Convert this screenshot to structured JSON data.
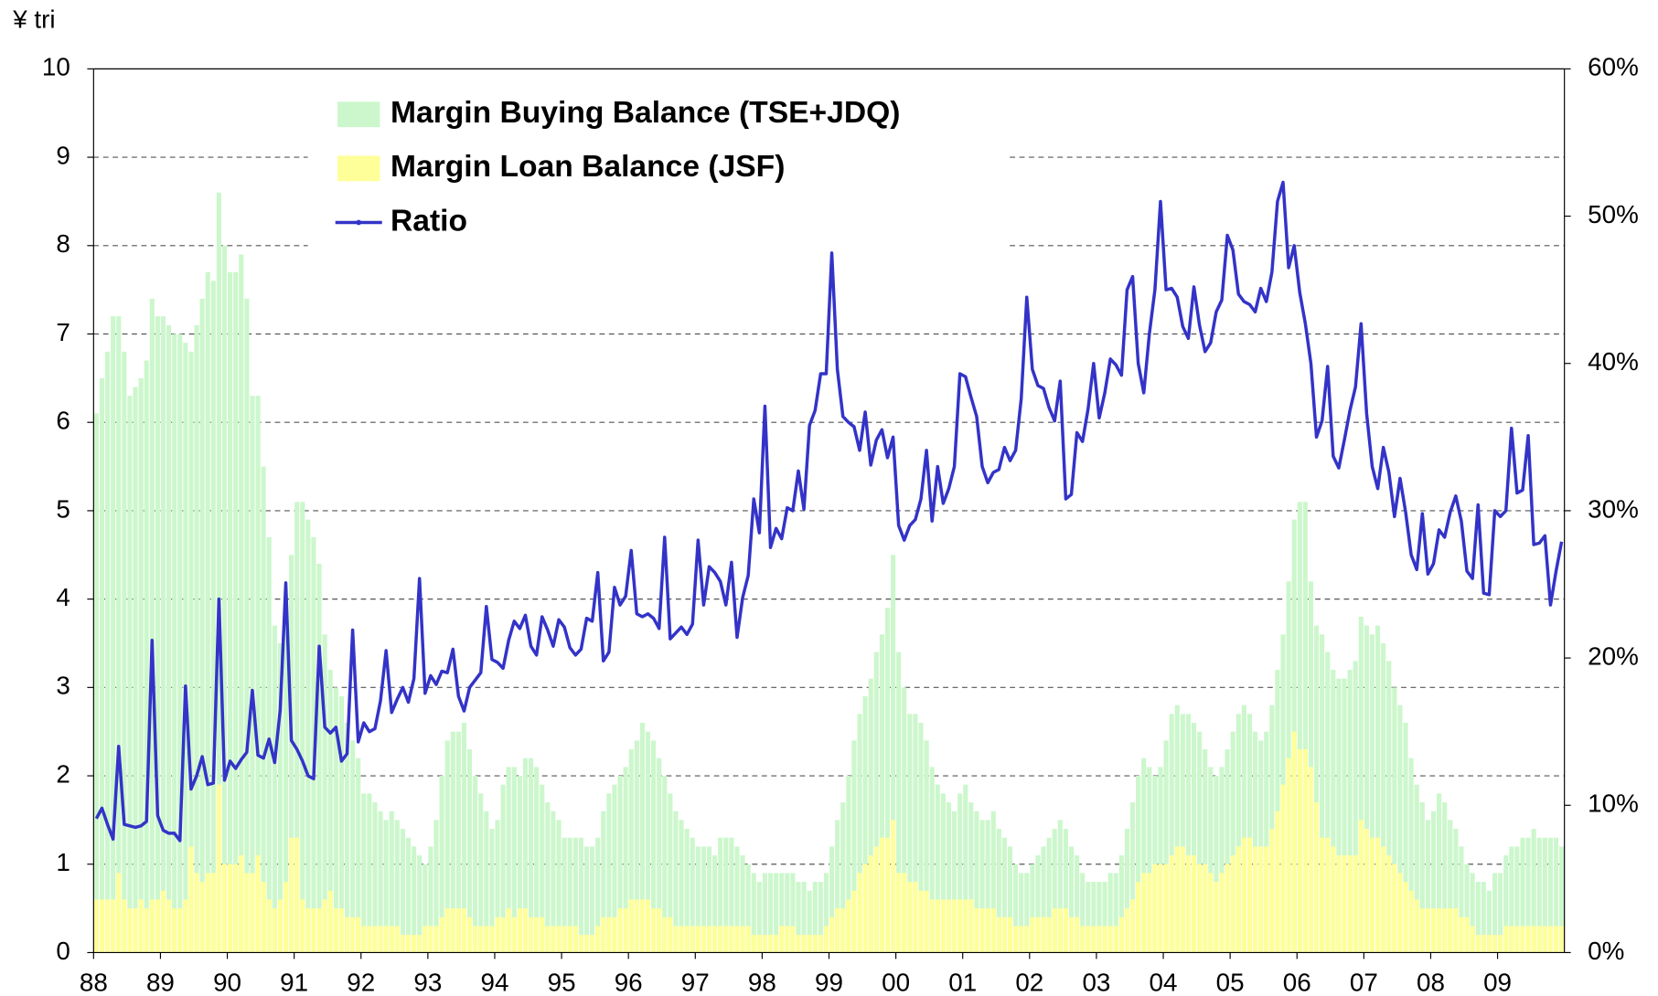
{
  "chart_data": {
    "type": "bar-line",
    "y_label": "¥ tri",
    "categories": [
      "88",
      null,
      null,
      null,
      null,
      null,
      null,
      null,
      null,
      null,
      null,
      null,
      "89",
      null,
      null,
      null,
      null,
      null,
      null,
      null,
      null,
      null,
      null,
      null,
      "90",
      null,
      null,
      null,
      null,
      null,
      null,
      null,
      null,
      null,
      null,
      null,
      "91",
      null,
      null,
      null,
      null,
      null,
      null,
      null,
      null,
      null,
      null,
      null,
      "92",
      null,
      null,
      null,
      null,
      null,
      null,
      null,
      null,
      null,
      null,
      null,
      "93",
      null,
      null,
      null,
      null,
      null,
      null,
      null,
      null,
      null,
      null,
      null,
      "94",
      null,
      null,
      null,
      null,
      null,
      null,
      null,
      null,
      null,
      null,
      null,
      "95",
      null,
      null,
      null,
      null,
      null,
      null,
      null,
      null,
      null,
      null,
      null,
      "96",
      null,
      null,
      null,
      null,
      null,
      null,
      null,
      null,
      null,
      null,
      null,
      "97",
      null,
      null,
      null,
      null,
      null,
      null,
      null,
      null,
      null,
      null,
      null,
      "98",
      null,
      null,
      null,
      null,
      null,
      null,
      null,
      null,
      null,
      null,
      null,
      "99",
      null,
      null,
      null,
      null,
      null,
      null,
      null,
      null,
      null,
      null,
      null,
      "00",
      null,
      null,
      null,
      null,
      null,
      null,
      null,
      null,
      null,
      null,
      null,
      "01",
      null,
      null,
      null,
      null,
      null,
      null,
      null,
      null,
      null,
      null,
      null,
      "02",
      null,
      null,
      null,
      null,
      null,
      null,
      null,
      null,
      null,
      null,
      null,
      "03",
      null,
      null,
      null,
      null,
      null,
      null,
      null,
      null,
      null,
      null,
      null,
      "04",
      null,
      null,
      null,
      null,
      null,
      null,
      null,
      null,
      null,
      null,
      null,
      "05",
      null,
      null,
      null,
      null,
      null,
      null,
      null,
      null,
      null,
      null,
      null,
      "06",
      null,
      null,
      null,
      null,
      null,
      null,
      null,
      null,
      null,
      null,
      null,
      "07",
      null,
      null,
      null,
      null,
      null,
      null,
      null,
      null,
      null,
      null,
      null,
      "08",
      null,
      null,
      null,
      null,
      null,
      null,
      null,
      null,
      null,
      null,
      null,
      "09",
      null,
      null,
      null,
      null,
      null,
      null,
      null,
      null,
      null,
      null,
      null
    ],
    "series": [
      {
        "name": "Margin Buying Balance (TSE+JDQ)",
        "color": "#ccf7cc",
        "kind": "bar",
        "values": [
          6.1,
          6.5,
          6.8,
          7.2,
          7.2,
          6.8,
          6.3,
          6.4,
          6.5,
          6.7,
          7.4,
          7.2,
          7.2,
          7.1,
          7.0,
          7.0,
          6.9,
          6.8,
          7.1,
          7.4,
          7.7,
          7.6,
          8.6,
          8.0,
          7.7,
          7.7,
          7.9,
          7.4,
          6.3,
          6.3,
          5.5,
          4.7,
          3.7,
          3.5,
          3.8,
          4.5,
          5.1,
          5.1,
          4.9,
          4.7,
          4.4,
          3.6,
          3.2,
          3.0,
          2.9,
          2.6,
          2.4,
          2.2,
          1.8,
          1.8,
          1.7,
          1.6,
          1.5,
          1.6,
          1.5,
          1.4,
          1.3,
          1.2,
          1.1,
          1.0,
          1.2,
          1.5,
          2.0,
          2.4,
          2.5,
          2.5,
          2.6,
          2.3,
          2.0,
          1.8,
          1.6,
          1.4,
          1.5,
          1.9,
          2.1,
          2.1,
          2.0,
          2.2,
          2.2,
          2.1,
          1.9,
          1.7,
          1.6,
          1.5,
          1.3,
          1.3,
          1.3,
          1.3,
          1.2,
          1.2,
          1.3,
          1.6,
          1.8,
          1.9,
          2.0,
          2.1,
          2.3,
          2.4,
          2.6,
          2.5,
          2.4,
          2.2,
          2.0,
          1.8,
          1.6,
          1.5,
          1.4,
          1.3,
          1.2,
          1.2,
          1.2,
          1.1,
          1.3,
          1.3,
          1.3,
          1.2,
          1.1,
          1.0,
          0.9,
          0.8,
          0.9,
          0.9,
          0.9,
          0.9,
          0.9,
          0.9,
          0.8,
          0.8,
          0.7,
          0.8,
          0.8,
          0.9,
          1.2,
          1.5,
          1.7,
          2.0,
          2.4,
          2.7,
          2.9,
          3.1,
          3.4,
          3.6,
          3.9,
          4.5,
          3.4,
          3.0,
          2.7,
          2.7,
          2.6,
          2.4,
          2.1,
          1.9,
          1.8,
          1.7,
          1.6,
          1.8,
          1.9,
          1.7,
          1.6,
          1.5,
          1.5,
          1.6,
          1.4,
          1.3,
          1.2,
          1.0,
          0.9,
          0.9,
          1.0,
          1.1,
          1.2,
          1.3,
          1.4,
          1.5,
          1.4,
          1.2,
          1.1,
          0.9,
          0.8,
          0.8,
          0.8,
          0.8,
          0.9,
          0.9,
          1.1,
          1.4,
          1.7,
          2.0,
          2.2,
          2.1,
          2.0,
          2.1,
          2.4,
          2.7,
          2.8,
          2.7,
          2.7,
          2.6,
          2.5,
          2.3,
          2.1,
          2.0,
          2.1,
          2.3,
          2.5,
          2.7,
          2.8,
          2.7,
          2.5,
          2.4,
          2.5,
          2.8,
          3.2,
          3.6,
          4.2,
          4.9,
          5.1,
          5.1,
          4.2,
          3.7,
          3.6,
          3.4,
          3.2,
          3.1,
          3.1,
          3.2,
          3.3,
          3.8,
          3.7,
          3.6,
          3.7,
          3.5,
          3.3,
          3.0,
          2.8,
          2.6,
          2.2,
          1.9,
          1.7,
          1.5,
          1.6,
          1.8,
          1.7,
          1.5,
          1.4,
          1.2,
          1.0,
          0.9,
          0.8,
          0.8,
          0.7,
          0.9,
          0.9,
          1.1,
          1.2,
          1.2,
          1.3,
          1.3,
          1.4,
          1.3,
          1.3,
          1.3,
          1.3,
          1.2
        ]
      },
      {
        "name": "Margin Loan Balance (JSF)",
        "color": "#ffff99",
        "kind": "bar",
        "values": [
          0.6,
          0.6,
          0.6,
          0.6,
          0.9,
          0.6,
          0.5,
          0.5,
          0.6,
          0.5,
          0.6,
          0.6,
          0.7,
          0.6,
          0.5,
          0.5,
          0.6,
          1.2,
          0.9,
          0.8,
          0.9,
          0.9,
          1.9,
          1.0,
          1.0,
          1.0,
          1.1,
          0.9,
          0.9,
          1.1,
          0.8,
          0.6,
          0.5,
          0.6,
          0.8,
          1.3,
          1.3,
          0.6,
          0.5,
          0.5,
          0.5,
          0.6,
          0.7,
          0.5,
          0.5,
          0.4,
          0.4,
          0.4,
          0.3,
          0.3,
          0.3,
          0.3,
          0.3,
          0.3,
          0.3,
          0.2,
          0.2,
          0.2,
          0.2,
          0.3,
          0.3,
          0.3,
          0.4,
          0.5,
          0.5,
          0.5,
          0.5,
          0.4,
          0.3,
          0.3,
          0.3,
          0.3,
          0.4,
          0.4,
          0.5,
          0.4,
          0.5,
          0.5,
          0.4,
          0.4,
          0.4,
          0.3,
          0.3,
          0.3,
          0.3,
          0.3,
          0.3,
          0.2,
          0.2,
          0.2,
          0.3,
          0.4,
          0.4,
          0.4,
          0.5,
          0.5,
          0.6,
          0.6,
          0.6,
          0.6,
          0.5,
          0.5,
          0.4,
          0.4,
          0.3,
          0.3,
          0.3,
          0.3,
          0.3,
          0.3,
          0.3,
          0.3,
          0.3,
          0.3,
          0.3,
          0.3,
          0.3,
          0.3,
          0.2,
          0.2,
          0.2,
          0.2,
          0.2,
          0.3,
          0.3,
          0.3,
          0.2,
          0.2,
          0.2,
          0.2,
          0.2,
          0.3,
          0.4,
          0.5,
          0.5,
          0.6,
          0.7,
          0.9,
          1.0,
          1.1,
          1.2,
          1.3,
          1.3,
          1.5,
          0.9,
          0.9,
          0.8,
          0.8,
          0.7,
          0.7,
          0.6,
          0.6,
          0.6,
          0.6,
          0.6,
          0.6,
          0.6,
          0.6,
          0.5,
          0.5,
          0.5,
          0.5,
          0.4,
          0.4,
          0.4,
          0.3,
          0.3,
          0.3,
          0.4,
          0.4,
          0.4,
          0.4,
          0.5,
          0.5,
          0.5,
          0.4,
          0.4,
          0.3,
          0.3,
          0.3,
          0.3,
          0.3,
          0.3,
          0.3,
          0.4,
          0.5,
          0.6,
          0.8,
          0.9,
          0.9,
          1.0,
          1.0,
          1.0,
          1.1,
          1.2,
          1.2,
          1.1,
          1.1,
          1.0,
          1.0,
          0.9,
          0.8,
          0.9,
          1.0,
          1.1,
          1.2,
          1.3,
          1.3,
          1.2,
          1.2,
          1.2,
          1.4,
          1.6,
          1.9,
          2.2,
          2.5,
          2.3,
          2.3,
          2.1,
          1.7,
          1.3,
          1.3,
          1.2,
          1.1,
          1.1,
          1.1,
          1.1,
          1.5,
          1.4,
          1.3,
          1.3,
          1.2,
          1.1,
          1.0,
          0.9,
          0.8,
          0.7,
          0.6,
          0.5,
          0.5,
          0.5,
          0.5,
          0.5,
          0.5,
          0.5,
          0.4,
          0.4,
          0.3,
          0.2,
          0.2,
          0.2,
          0.2,
          0.2,
          0.3,
          0.3,
          0.3,
          0.3,
          0.3,
          0.3,
          0.3,
          0.3,
          0.3,
          0.3,
          0.3
        ]
      },
      {
        "name": "Ratio",
        "color": "#3333c8",
        "kind": "line",
        "axis": "y2",
        "values": [
          9.1,
          9.8,
          8.7,
          7.7,
          14.0,
          8.7,
          8.6,
          8.5,
          8.6,
          8.9,
          21.2,
          9.3,
          8.3,
          8.1,
          8.1,
          7.6,
          18.1,
          11.1,
          12.0,
          13.3,
          11.4,
          11.5,
          24.0,
          11.7,
          13.0,
          12.5,
          13.1,
          13.6,
          17.8,
          13.4,
          13.2,
          14.5,
          12.9,
          16.5,
          25.1,
          14.4,
          13.8,
          13.0,
          12.0,
          11.8,
          20.8,
          15.3,
          14.9,
          15.3,
          13.0,
          13.5,
          21.9,
          14.3,
          15.6,
          15.0,
          15.2,
          17.1,
          20.5,
          16.3,
          17.2,
          18.0,
          17.0,
          18.6,
          25.4,
          17.6,
          18.8,
          18.2,
          19.1,
          19.0,
          20.6,
          17.4,
          16.4,
          18.0,
          18.5,
          19.0,
          23.5,
          19.9,
          19.7,
          19.3,
          21.2,
          22.5,
          22.0,
          22.9,
          20.8,
          20.2,
          22.8,
          21.9,
          20.8,
          22.6,
          22.1,
          20.7,
          20.2,
          20.6,
          22.7,
          22.5,
          25.8,
          19.8,
          20.4,
          24.8,
          23.6,
          24.2,
          27.3,
          23.0,
          22.8,
          23.0,
          22.7,
          22.0,
          28.2,
          21.3,
          21.7,
          22.1,
          21.6,
          22.3,
          28.0,
          23.6,
          26.2,
          25.8,
          25.2,
          23.6,
          26.5,
          21.4,
          24.1,
          25.6,
          30.8,
          28.5,
          37.1,
          27.5,
          28.8,
          28.1,
          30.2,
          30.0,
          32.7,
          30.1,
          35.8,
          36.8,
          39.3,
          39.3,
          47.5,
          39.6,
          36.4,
          36.0,
          35.7,
          34.1,
          36.7,
          33.1,
          34.8,
          35.5,
          33.6,
          35.0,
          29.0,
          28.0,
          29.0,
          29.4,
          30.8,
          34.1,
          29.3,
          33.0,
          30.5,
          31.5,
          33.0,
          39.3,
          39.1,
          37.7,
          36.4,
          33.0,
          31.9,
          32.6,
          32.8,
          34.3,
          33.4,
          34.1,
          37.6,
          44.5,
          39.6,
          38.5,
          38.3,
          37.0,
          36.1,
          38.8,
          30.8,
          31.1,
          35.3,
          34.7,
          36.9,
          40.0,
          36.3,
          38.0,
          40.3,
          39.9,
          39.2,
          45.0,
          45.9,
          40.0,
          38.0,
          42.0,
          45.0,
          51.0,
          45.0,
          45.1,
          44.5,
          42.5,
          41.7,
          45.2,
          42.6,
          40.8,
          41.4,
          43.5,
          44.3,
          48.7,
          47.7,
          44.7,
          44.2,
          44.0,
          43.5,
          45.1,
          44.2,
          46.2,
          51.0,
          52.3,
          46.5,
          48.0,
          44.8,
          42.7,
          40.0,
          35.0,
          36.1,
          39.8,
          33.7,
          32.9,
          34.8,
          36.8,
          38.4,
          42.7,
          36.6,
          33.0,
          31.5,
          34.3,
          32.6,
          29.6,
          32.2,
          29.9,
          27.0,
          26.0,
          29.8,
          25.7,
          26.4,
          28.7,
          28.2,
          29.9,
          31.0,
          29.3,
          25.9,
          25.4,
          30.4,
          24.4,
          24.3,
          30.0,
          29.6,
          30.0,
          35.6,
          31.2,
          31.4,
          35.1,
          27.7,
          27.8,
          28.3,
          23.6,
          25.9,
          27.9
        ]
      }
    ],
    "ylim": [
      0,
      10
    ],
    "yticks": [
      0,
      1,
      2,
      3,
      4,
      5,
      6,
      7,
      8,
      9,
      10
    ],
    "y2lim": [
      0,
      60
    ],
    "y2ticks": [
      {
        "value": 0,
        "label": "0%"
      },
      {
        "value": 10,
        "label": "10%"
      },
      {
        "value": 20,
        "label": "20%"
      },
      {
        "value": 30,
        "label": "30%"
      },
      {
        "value": 40,
        "label": "40%"
      },
      {
        "value": 50,
        "label": "50%"
      },
      {
        "value": 60,
        "label": "60%"
      }
    ],
    "grid": true,
    "legend": "top-left"
  }
}
